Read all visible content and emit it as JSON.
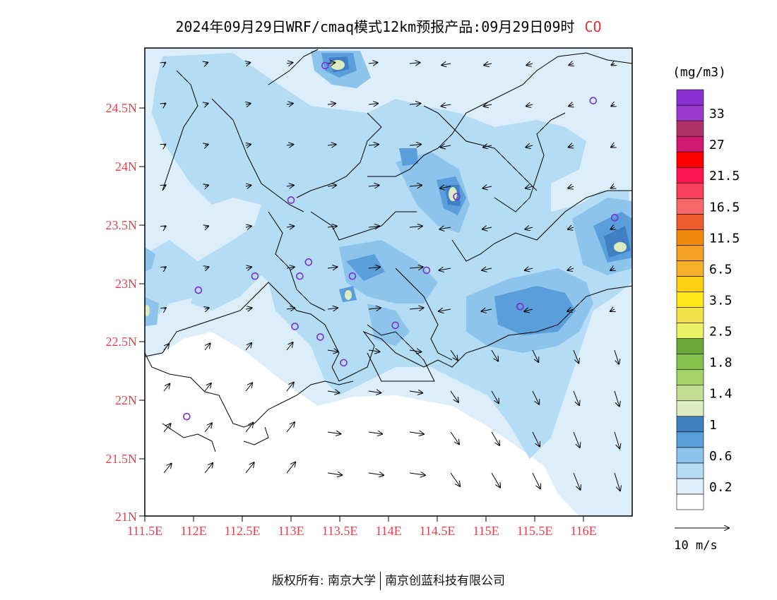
{
  "title": {
    "text": "2024年09月29日WRF/cmaq模式12km预报产品:09月29日09时",
    "species": "CO"
  },
  "axes": {
    "lat_labels": [
      "24.5N",
      "24N",
      "23.5N",
      "23N",
      "22.5N",
      "22N",
      "21.5N",
      "21N"
    ],
    "lon_labels": [
      "111.5E",
      "112E",
      "112.5E",
      "113E",
      "113.5E",
      "114E",
      "114.5E",
      "115E",
      "115.5E",
      "116E"
    ],
    "label_color": "#e8414e",
    "lat_range": [
      21,
      25
    ],
    "lon_range": [
      111.5,
      116.5
    ]
  },
  "colorbar": {
    "unit": "(mg/m3)",
    "levels": [
      {
        "label": "",
        "color": "#ffffff"
      },
      {
        "label": "0.2",
        "color": "#dceefa"
      },
      {
        "label": "",
        "color": "#b4dcf5"
      },
      {
        "label": "0.6",
        "color": "#8cc4ec"
      },
      {
        "label": "",
        "color": "#5a9edc"
      },
      {
        "label": "1",
        "color": "#3f7fc2"
      },
      {
        "label": "",
        "color": "#dcebc0"
      },
      {
        "label": "1.4",
        "color": "#c2de92"
      },
      {
        "label": "",
        "color": "#a6d26a"
      },
      {
        "label": "1.8",
        "color": "#86c24e"
      },
      {
        "label": "",
        "color": "#6aa83a"
      },
      {
        "label": "2.5",
        "color": "#eaf266"
      },
      {
        "label": "",
        "color": "#f4e24a"
      },
      {
        "label": "3.5",
        "color": "#ffe81a"
      },
      {
        "label": "",
        "color": "#fbd010"
      },
      {
        "label": "6.5",
        "color": "#f8b02a"
      },
      {
        "label": "",
        "color": "#f4a024"
      },
      {
        "label": "11.5",
        "color": "#f28a10"
      },
      {
        "label": "",
        "color": "#ec5c2c"
      },
      {
        "label": "16.5",
        "color": "#f86868"
      },
      {
        "label": "",
        "color": "#f8405c"
      },
      {
        "label": "21.5",
        "color": "#fc1450"
      },
      {
        "label": "",
        "color": "#ff0000"
      },
      {
        "label": "27",
        "color": "#d01870"
      },
      {
        "label": "",
        "color": "#b03068"
      },
      {
        "label": "33",
        "color": "#9a3ad0"
      },
      {
        "label": "",
        "color": "#8a30d0"
      }
    ]
  },
  "wind_legend": {
    "label": "10 m/s"
  },
  "stations": {
    "color": "#7a2fd0",
    "points": [
      {
        "lon": 113.35,
        "lat": 24.85
      },
      {
        "lon": 116.1,
        "lat": 24.55
      },
      {
        "lon": 113.0,
        "lat": 23.7
      },
      {
        "lon": 114.7,
        "lat": 23.73
      },
      {
        "lon": 116.32,
        "lat": 23.55
      },
      {
        "lon": 113.18,
        "lat": 23.17
      },
      {
        "lon": 112.63,
        "lat": 23.05
      },
      {
        "lon": 113.09,
        "lat": 23.05
      },
      {
        "lon": 113.63,
        "lat": 23.05
      },
      {
        "lon": 114.39,
        "lat": 23.1
      },
      {
        "lon": 112.05,
        "lat": 22.93
      },
      {
        "lon": 115.35,
        "lat": 22.79
      },
      {
        "lon": 113.04,
        "lat": 22.62
      },
      {
        "lon": 114.07,
        "lat": 22.63
      },
      {
        "lon": 113.3,
        "lat": 22.53
      },
      {
        "lon": 113.54,
        "lat": 22.31
      },
      {
        "lon": 111.93,
        "lat": 21.85
      }
    ]
  },
  "copyright": {
    "left": "版权所有: 南京大学",
    "right": "南京创蓝科技有限公司"
  }
}
